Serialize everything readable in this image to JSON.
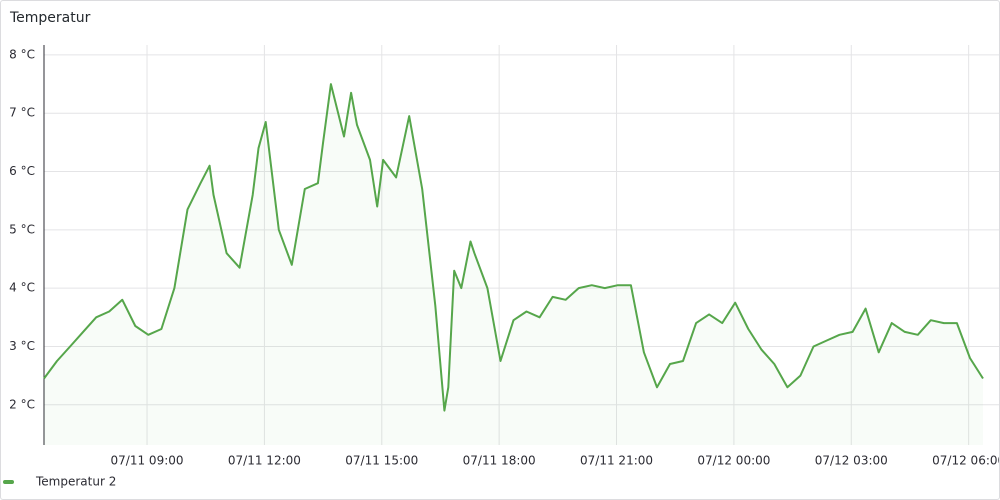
{
  "chart_data": {
    "type": "line",
    "title": "Temperatur",
    "x": [
      "07/11 06:22",
      "07/11 06:42",
      "07/11 07:02",
      "07/11 07:22",
      "07/11 07:42",
      "07/11 08:02",
      "07/11 08:22",
      "07/11 08:42",
      "07/11 09:02",
      "07/11 09:22",
      "07/11 09:42",
      "07/11 10:02",
      "07/11 10:22",
      "07/11 10:36",
      "07/11 10:42",
      "07/11 11:02",
      "07/11 11:22",
      "07/11 11:42",
      "07/11 11:51",
      "07/11 12:02",
      "07/11 12:22",
      "07/11 12:42",
      "07/11 13:02",
      "07/11 13:22",
      "07/11 13:30",
      "07/11 13:42",
      "07/11 14:02",
      "07/11 14:13",
      "07/11 14:22",
      "07/11 14:42",
      "07/11 14:53",
      "07/11 15:02",
      "07/11 15:22",
      "07/11 15:42",
      "07/11 16:02",
      "07/11 16:22",
      "07/11 16:36",
      "07/11 16:42",
      "07/11 16:51",
      "07/11 17:02",
      "07/11 17:16",
      "07/11 17:22",
      "07/11 17:42",
      "07/11 18:02",
      "07/11 18:22",
      "07/11 18:42",
      "07/11 19:02",
      "07/11 19:22",
      "07/11 19:42",
      "07/11 20:02",
      "07/11 20:22",
      "07/11 20:42",
      "07/11 21:02",
      "07/11 21:22",
      "07/11 21:42",
      "07/11 22:02",
      "07/11 22:22",
      "07/11 22:42",
      "07/11 23:02",
      "07/11 23:22",
      "07/11 23:42",
      "07/12 00:02",
      "07/12 00:22",
      "07/12 00:42",
      "07/12 01:02",
      "07/12 01:22",
      "07/12 01:42",
      "07/12 02:02",
      "07/12 02:22",
      "07/12 02:42",
      "07/12 03:02",
      "07/12 03:22",
      "07/12 03:42",
      "07/12 04:02",
      "07/12 04:22",
      "07/12 04:42",
      "07/12 05:02",
      "07/12 05:22",
      "07/12 05:42",
      "07/12 06:02",
      "07/12 06:22"
    ],
    "series": [
      {
        "name": "Temperatur 2",
        "color": "#56a64b",
        "values": [
          2.45,
          2.75,
          3.0,
          3.25,
          3.5,
          3.6,
          3.8,
          3.35,
          3.2,
          3.3,
          4.0,
          5.35,
          5.8,
          6.1,
          5.6,
          4.6,
          4.35,
          5.6,
          6.4,
          6.85,
          5.0,
          4.4,
          5.7,
          5.8,
          6.5,
          7.5,
          6.6,
          7.35,
          6.8,
          6.2,
          5.4,
          6.2,
          5.9,
          6.95,
          5.7,
          3.7,
          1.9,
          2.3,
          4.3,
          4.0,
          4.8,
          4.6,
          4.0,
          2.75,
          3.45,
          3.6,
          3.5,
          3.85,
          3.8,
          4.0,
          4.05,
          4.0,
          4.05,
          4.05,
          2.9,
          2.3,
          2.7,
          2.75,
          3.4,
          3.55,
          3.4,
          3.75,
          3.3,
          2.95,
          2.7,
          2.3,
          2.5,
          3.0,
          3.1,
          3.2,
          3.25,
          3.65,
          2.9,
          3.4,
          3.25,
          3.2,
          3.45,
          3.4,
          3.4,
          2.8,
          2.45
        ]
      }
    ],
    "xlim": [
      "07/11 06:22",
      "07/12 06:22"
    ],
    "xticks": [
      "07/11 09:00",
      "07/11 12:00",
      "07/11 15:00",
      "07/11 18:00",
      "07/11 21:00",
      "07/12 00:00",
      "07/12 03:00",
      "07/12 06:00"
    ],
    "ylim": [
      1.31,
      8.17
    ],
    "yticks": [
      {
        "value": 2,
        "label": "2 °C"
      },
      {
        "value": 3,
        "label": "3 °C"
      },
      {
        "value": 4,
        "label": "4 °C"
      },
      {
        "value": 5,
        "label": "5 °C"
      },
      {
        "value": 6,
        "label": "6 °C"
      },
      {
        "value": 7,
        "label": "7 °C"
      },
      {
        "value": 8,
        "label": "8 °C"
      }
    ],
    "grid": true
  }
}
